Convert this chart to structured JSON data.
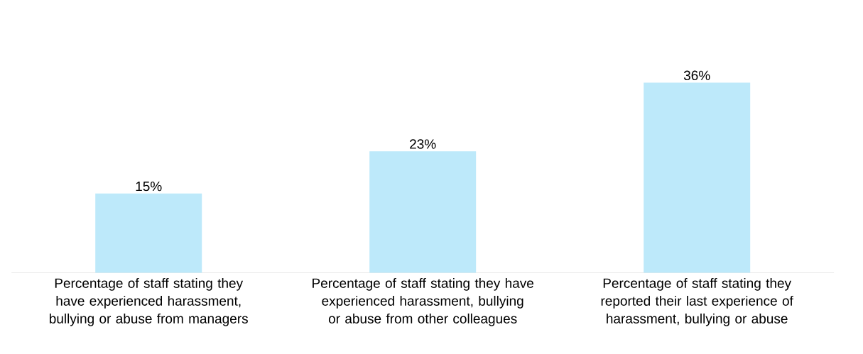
{
  "chart_data": {
    "type": "bar",
    "categories": [
      "Percentage of staff stating they have experienced harassment, bullying or abuse from managers",
      "Percentage of staff stating they have experienced harassment, bullying or abuse from other colleagues",
      "Percentage of staff stating they reported their last experience of harassment, bullying or abuse"
    ],
    "values": [
      15,
      23,
      36
    ],
    "value_labels": [
      "15%",
      "23%",
      "36%"
    ],
    "color": "#bde9fa"
  }
}
